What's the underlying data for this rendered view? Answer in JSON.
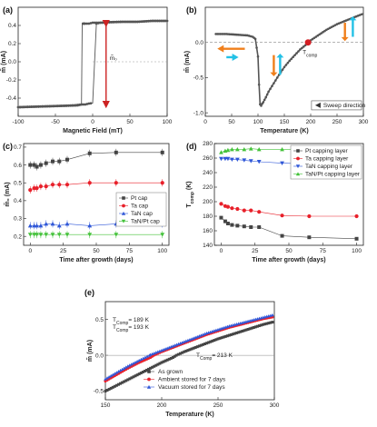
{
  "chart_data": [
    {
      "panel": "(a)",
      "type": "line",
      "xlabel": "Magnetic Field (mT)",
      "ylabel": "m̃ (mA)",
      "xlim": [
        -100,
        100
      ],
      "ylim": [
        -0.6,
        0.6
      ],
      "xticks": [
        -100,
        -50,
        0,
        50,
        100
      ],
      "yticks": [
        -0.4,
        -0.2,
        0.0,
        0.2,
        0.4
      ],
      "annotation": "m̃₀",
      "series": [
        {
          "values_x": [
            -100,
            -80,
            -60,
            -40,
            -25,
            -15,
            -10,
            -5,
            0,
            5,
            10,
            15,
            20,
            40,
            60,
            80,
            100
          ],
          "values_y": [
            -0.5,
            -0.495,
            -0.49,
            -0.485,
            -0.48,
            -0.47,
            -0.47,
            -0.46,
            -0.455,
            0.42,
            0.43,
            0.43,
            0.435,
            0.44,
            0.44,
            0.45,
            0.45
          ]
        },
        {
          "values_x": [
            100,
            80,
            60,
            40,
            20,
            10,
            5,
            0,
            -5,
            -10,
            -12,
            -14,
            -15,
            -20,
            -40,
            -60,
            -80,
            -100
          ],
          "values_y": [
            0.45,
            0.45,
            0.44,
            0.44,
            0.435,
            0.43,
            0.43,
            0.43,
            0.42,
            0.42,
            0.42,
            0.42,
            -0.47,
            -0.48,
            -0.485,
            -0.49,
            -0.495,
            -0.5
          ]
        }
      ]
    },
    {
      "panel": "(b)",
      "type": "line",
      "xlabel": "Temperature (K)",
      "ylabel": "m̃ (mA)",
      "xlim": [
        0,
        300
      ],
      "ylim": [
        -1.05,
        0.5
      ],
      "xticks": [
        0,
        50,
        100,
        150,
        200,
        250,
        300
      ],
      "yticks": [
        -1.0,
        -0.5,
        0.0
      ],
      "tcomp_label": "T",
      "tcomp_sub": "comp",
      "tcomp_value": 195,
      "sweep_label": "Sweep direction",
      "series": [
        {
          "values_x": [
            20,
            40,
            60,
            80,
            90,
            95,
            100,
            102,
            104,
            106,
            108,
            110,
            115,
            120,
            130,
            140,
            150,
            160,
            170,
            180,
            190,
            195,
            200,
            210,
            220,
            230,
            240,
            250,
            260,
            270,
            280,
            290,
            300
          ],
          "values_y": [
            0.12,
            0.12,
            0.11,
            0.1,
            0.08,
            0.05,
            -0.2,
            -0.6,
            -0.88,
            -0.9,
            -0.87,
            -0.85,
            -0.78,
            -0.7,
            -0.58,
            -0.46,
            -0.35,
            -0.26,
            -0.18,
            -0.1,
            -0.04,
            0.0,
            0.03,
            0.08,
            0.13,
            0.18,
            0.22,
            0.26,
            0.29,
            0.32,
            0.35,
            0.38,
            0.41
          ]
        }
      ]
    },
    {
      "panel": "(c)",
      "type": "scatter",
      "xlabel": "Time after growth (days)",
      "ylabel": "m̃₀ (mA)",
      "xlim": [
        -5,
        105
      ],
      "ylim": [
        0.15,
        0.72
      ],
      "xticks": [
        0,
        25,
        50,
        75,
        100
      ],
      "yticks": [
        0.2,
        0.3,
        0.4,
        0.5,
        0.6,
        0.7
      ],
      "series": [
        {
          "name": "Pt cap",
          "color": "#444444",
          "marker": "square",
          "x": [
            0,
            3,
            5,
            8,
            12,
            17,
            22,
            28,
            45,
            65,
            100
          ],
          "y": [
            0.6,
            0.6,
            0.59,
            0.6,
            0.61,
            0.62,
            0.62,
            0.63,
            0.665,
            0.67,
            0.67
          ]
        },
        {
          "name": "Ta cap",
          "color": "#e8202a",
          "marker": "circle",
          "x": [
            0,
            3,
            5,
            8,
            12,
            17,
            22,
            28,
            45,
            65,
            100
          ],
          "y": [
            0.46,
            0.47,
            0.47,
            0.48,
            0.48,
            0.49,
            0.49,
            0.49,
            0.5,
            0.5,
            0.5
          ]
        },
        {
          "name": "TaN cap",
          "color": "#2f57d8",
          "marker": "triangle-up",
          "x": [
            0,
            3,
            5,
            8,
            12,
            17,
            22,
            28,
            45,
            65,
            100
          ],
          "y": [
            0.26,
            0.26,
            0.26,
            0.26,
            0.27,
            0.27,
            0.26,
            0.27,
            0.26,
            0.27,
            0.27
          ]
        },
        {
          "name": "TaN/Pt cap",
          "color": "#44c23a",
          "marker": "triangle-down",
          "x": [
            0,
            3,
            5,
            8,
            12,
            17,
            22,
            28,
            45,
            65,
            100
          ],
          "y": [
            0.21,
            0.21,
            0.21,
            0.21,
            0.21,
            0.21,
            0.21,
            0.21,
            0.21,
            0.21,
            0.21
          ]
        }
      ],
      "legend": "right"
    },
    {
      "panel": "(d)",
      "type": "scatter",
      "xlabel": "Time after growth (days)",
      "ylabel": "T",
      "ylabel_sub": "comp",
      "ylabel_unit": " (K)",
      "xlim": [
        -5,
        105
      ],
      "ylim": [
        140,
        280
      ],
      "xticks": [
        0,
        25,
        50,
        75,
        100
      ],
      "yticks": [
        140,
        160,
        180,
        200,
        220,
        240,
        260,
        280
      ],
      "series": [
        {
          "name": "Pt capping layer",
          "color": "#444444",
          "marker": "square",
          "x": [
            0,
            3,
            5,
            8,
            12,
            17,
            22,
            28,
            45,
            65,
            100
          ],
          "y": [
            178,
            173,
            170,
            168,
            167,
            166,
            165,
            165,
            153,
            151,
            149
          ]
        },
        {
          "name": "Ta capping layer",
          "color": "#e8202a",
          "marker": "circle",
          "x": [
            0,
            3,
            5,
            8,
            12,
            17,
            22,
            28,
            45,
            65,
            100
          ],
          "y": [
            197,
            194,
            193,
            191,
            190,
            188,
            188,
            186,
            181,
            180,
            180
          ]
        },
        {
          "name": "TaN capping layer",
          "color": "#2f57d8",
          "marker": "triangle-down",
          "x": [
            0,
            3,
            5,
            8,
            12,
            17,
            22,
            28,
            45,
            65,
            100
          ],
          "y": [
            259,
            259,
            259,
            258,
            258,
            257,
            256,
            255,
            253,
            252,
            249
          ]
        },
        {
          "name": "TaN/Pt capping layer",
          "color": "#44c23a",
          "marker": "triangle-up",
          "x": [
            0,
            3,
            5,
            8,
            12,
            17,
            22,
            28,
            45,
            65,
            100
          ],
          "y": [
            268,
            270,
            271,
            272,
            272,
            272,
            273,
            272,
            272,
            272,
            272
          ]
        }
      ],
      "legend": "right"
    },
    {
      "panel": "(e)",
      "type": "scatter",
      "xlabel": "Temperature (K)",
      "ylabel": "m̃ (mA)",
      "xlim": [
        150,
        300
      ],
      "ylim": [
        -0.62,
        0.75
      ],
      "xticks": [
        150,
        200,
        250,
        300
      ],
      "yticks": [
        -0.5,
        0.0,
        0.5
      ],
      "annotations": [
        {
          "text": "T",
          "sub": "Comp",
          "rest": "= 189 K",
          "color": "#2f57d8"
        },
        {
          "text": "T",
          "sub": "Comp",
          "rest": "= 193 K",
          "color": "#e8202a"
        },
        {
          "text": "T",
          "sub": "Comp",
          "rest": "= 213 K",
          "color": "#444444"
        }
      ],
      "series": [
        {
          "name": "As grown",
          "color": "#444444",
          "marker": "square",
          "x": [
            150,
            160,
            170,
            180,
            190,
            200,
            210,
            213,
            220,
            230,
            240,
            250,
            260,
            270,
            280,
            290,
            300
          ],
          "y": [
            -0.5,
            -0.42,
            -0.34,
            -0.26,
            -0.18,
            -0.1,
            -0.03,
            0.0,
            0.05,
            0.11,
            0.17,
            0.23,
            0.28,
            0.33,
            0.38,
            0.43,
            0.47
          ]
        },
        {
          "name": "Ambient stored for 7 days",
          "color": "#e8202a",
          "marker": "circle",
          "x": [
            150,
            160,
            170,
            180,
            190,
            193,
            200,
            210,
            220,
            230,
            240,
            250,
            260,
            270,
            280,
            290,
            300
          ],
          "y": [
            -0.36,
            -0.27,
            -0.18,
            -0.1,
            -0.03,
            0.0,
            0.05,
            0.11,
            0.17,
            0.23,
            0.29,
            0.34,
            0.39,
            0.43,
            0.47,
            0.51,
            0.54
          ]
        },
        {
          "name": "Vacuum stored for 7 days",
          "color": "#2f57d8",
          "marker": "triangle-up",
          "x": [
            150,
            160,
            170,
            180,
            189,
            190,
            200,
            210,
            220,
            230,
            240,
            250,
            260,
            270,
            280,
            290,
            300
          ],
          "y": [
            -0.33,
            -0.24,
            -0.15,
            -0.07,
            0.0,
            0.01,
            0.07,
            0.13,
            0.19,
            0.25,
            0.31,
            0.36,
            0.41,
            0.45,
            0.49,
            0.53,
            0.57
          ]
        }
      ],
      "legend": "bottom-right"
    }
  ]
}
